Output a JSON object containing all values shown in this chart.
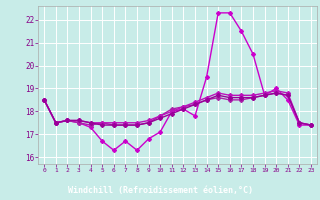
{
  "title": "",
  "xlabel": "Windchill (Refroidissement éolien,°C)",
  "ylabel": "",
  "background_color": "#c8ece8",
  "grid_color": "#ffffff",
  "xlabel_bg": "#9900aa",
  "xlim": [
    -0.5,
    23.5
  ],
  "ylim": [
    15.7,
    22.6
  ],
  "yticks": [
    16,
    17,
    18,
    19,
    20,
    21,
    22
  ],
  "xticks": [
    0,
    1,
    2,
    3,
    4,
    5,
    6,
    7,
    8,
    9,
    10,
    11,
    12,
    13,
    14,
    15,
    16,
    17,
    18,
    19,
    20,
    21,
    22,
    23
  ],
  "lines": [
    {
      "x": [
        0,
        1,
        2,
        3,
        4,
        5,
        6,
        7,
        8,
        9,
        10,
        11,
        12,
        13,
        14,
        15,
        16,
        17,
        18,
        19,
        20,
        21,
        22,
        23
      ],
      "y": [
        18.5,
        17.5,
        17.6,
        17.5,
        17.3,
        16.7,
        16.3,
        16.7,
        16.3,
        16.8,
        17.1,
        18.0,
        18.1,
        17.8,
        19.5,
        22.3,
        22.3,
        21.5,
        20.5,
        18.7,
        19.0,
        18.5,
        17.4,
        17.4
      ],
      "color": "#cc00cc",
      "linewidth": 1.0,
      "marker": "D",
      "markersize": 2.0
    },
    {
      "x": [
        0,
        1,
        2,
        3,
        4,
        5,
        6,
        7,
        8,
        9,
        10,
        11,
        12,
        13,
        14,
        15,
        16,
        17,
        18,
        19,
        20,
        21,
        22,
        23
      ],
      "y": [
        18.5,
        17.5,
        17.6,
        17.5,
        17.4,
        17.5,
        17.4,
        17.4,
        17.4,
        17.5,
        17.8,
        18.1,
        18.2,
        18.3,
        18.5,
        18.6,
        18.5,
        18.5,
        18.6,
        18.7,
        18.8,
        18.7,
        17.5,
        17.4
      ],
      "color": "#aa22aa",
      "linewidth": 1.0,
      "marker": "D",
      "markersize": 2.0
    },
    {
      "x": [
        0,
        1,
        2,
        3,
        4,
        5,
        6,
        7,
        8,
        9,
        10,
        11,
        12,
        13,
        14,
        15,
        16,
        17,
        18,
        19,
        20,
        21,
        22,
        23
      ],
      "y": [
        18.5,
        17.5,
        17.6,
        17.6,
        17.5,
        17.5,
        17.5,
        17.5,
        17.5,
        17.6,
        17.8,
        18.0,
        18.2,
        18.4,
        18.6,
        18.8,
        18.7,
        18.7,
        18.7,
        18.8,
        18.9,
        18.8,
        17.5,
        17.4
      ],
      "color": "#bb11bb",
      "linewidth": 1.0,
      "marker": "D",
      "markersize": 2.0
    },
    {
      "x": [
        0,
        1,
        2,
        3,
        4,
        5,
        6,
        7,
        8,
        9,
        10,
        11,
        12,
        13,
        14,
        15,
        16,
        17,
        18,
        19,
        20,
        21,
        22,
        23
      ],
      "y": [
        18.5,
        17.5,
        17.6,
        17.6,
        17.5,
        17.4,
        17.4,
        17.4,
        17.4,
        17.5,
        17.7,
        17.9,
        18.1,
        18.3,
        18.5,
        18.7,
        18.6,
        18.6,
        18.6,
        18.7,
        18.8,
        18.7,
        17.5,
        17.4
      ],
      "color": "#990099",
      "linewidth": 1.0,
      "marker": "D",
      "markersize": 2.0
    }
  ]
}
